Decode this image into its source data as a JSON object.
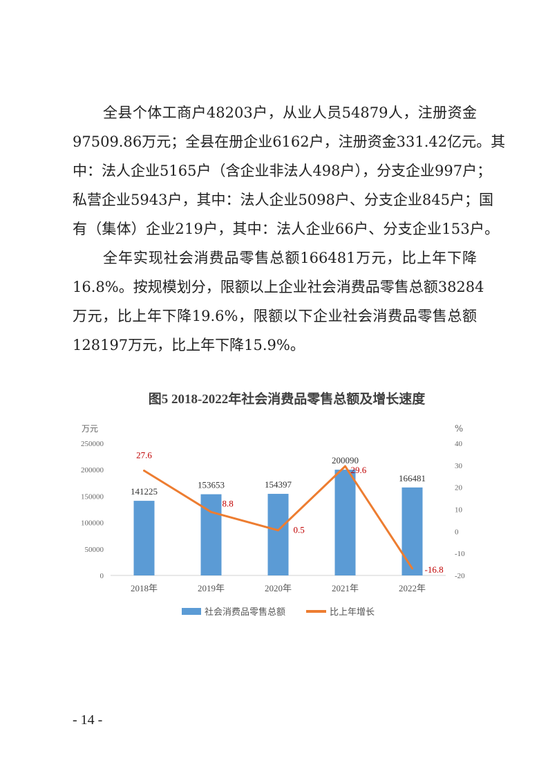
{
  "paragraphs": [
    {
      "lines": [
        "全县个体工商户48203户，从业人员54879人，注册资金",
        "97509.86万元；全县在册企业6162户，注册资金331.42亿元。其",
        "中：法人企业5165户（含企业非法人498户），分支企业997户；",
        "私营企业5943户，其中：法人企业5098户、分支企业845户；国",
        "有（集体）企业219户，其中：法人企业66户、分支企业153户。"
      ]
    },
    {
      "lines": [
        "全年实现社会消费品零售总额166481万元，比上年下降",
        "16.8%。按规模划分，限额以上企业社会消费品零售总额38284",
        "万元，比上年下降19.6%，限额以下企业社会消费品零售总额",
        "128197万元，比上年下降15.9%。"
      ]
    }
  ],
  "page_number": "- 14 -",
  "chart_data": {
    "type": "bar+line",
    "title": "图5  2018-2022年社会消费品零售总额及增长速度",
    "categories": [
      "2018年",
      "2019年",
      "2020年",
      "2021年",
      "2022年"
    ],
    "y_left": {
      "unit": "万元",
      "range": [
        0,
        250000
      ],
      "ticks": [
        "0",
        "50000",
        "100000",
        "150000",
        "200000",
        "250000"
      ]
    },
    "y_right": {
      "unit": "%",
      "range": [
        -20,
        40
      ],
      "ticks": [
        "-20",
        "-10",
        "0",
        "10",
        "20",
        "30",
        "40"
      ]
    },
    "series": [
      {
        "name": "社会消费品零售总额",
        "type": "bar",
        "axis": "left",
        "values": [
          141225,
          153653,
          154397,
          200090,
          166481
        ],
        "labels": [
          "141225",
          "153653",
          "154397",
          "200090",
          "166481"
        ],
        "color": "#5B9BD5"
      },
      {
        "name": "比上年增长",
        "type": "line",
        "axis": "right",
        "values": [
          27.6,
          8.8,
          0.5,
          29.6,
          -16.8
        ],
        "labels": [
          "27.6",
          "8.8",
          "0.5",
          "29.6",
          "-16.8"
        ],
        "color": "#ED7D31",
        "label_color": "#C00000"
      }
    ],
    "legend": "bottom",
    "grid": false
  }
}
